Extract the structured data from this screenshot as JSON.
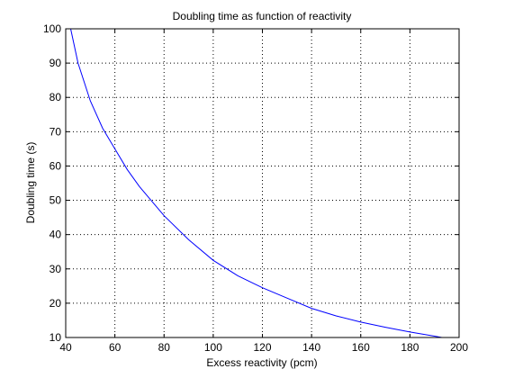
{
  "chart_data": {
    "type": "line",
    "title": "Doubling time as function of reactivity",
    "xlabel": "Excess reactivity (pcm)",
    "ylabel": "Doubling time (s)",
    "xlim": [
      40,
      200
    ],
    "ylim": [
      10,
      100
    ],
    "xticks": [
      40,
      60,
      80,
      100,
      120,
      140,
      160,
      180,
      200
    ],
    "yticks": [
      10,
      20,
      30,
      40,
      50,
      60,
      70,
      80,
      90,
      100
    ],
    "grid": true,
    "colors": {
      "line": "#0000ff",
      "axis": "#000000",
      "grid": "#000000"
    },
    "series": [
      {
        "x": [
          42,
          45,
          50,
          55,
          60,
          65,
          70,
          80,
          90,
          100,
          110,
          120,
          130,
          140,
          150,
          160,
          170,
          180,
          190,
          193
        ],
        "y": [
          100,
          90,
          79,
          71,
          65,
          59,
          54,
          45.5,
          38.5,
          32.5,
          28,
          24.5,
          21.5,
          18.5,
          16.3,
          14.5,
          13,
          11.6,
          10.4,
          10
        ]
      }
    ]
  }
}
